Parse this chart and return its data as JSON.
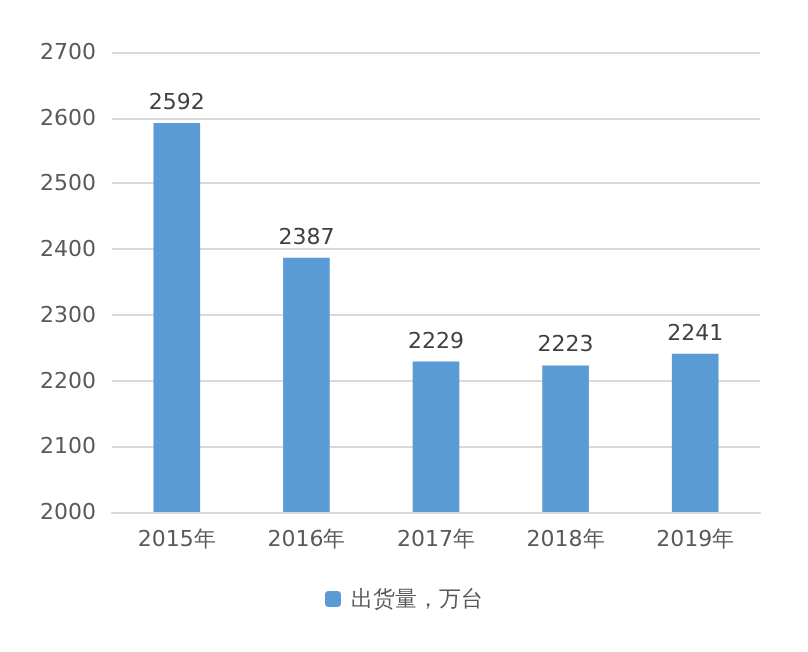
{
  "chart_data": {
    "type": "bar",
    "categories": [
      "2015年",
      "2016年",
      "2017年",
      "2018年",
      "2019年"
    ],
    "series": [
      {
        "name": "出货量，万台",
        "color": "#5b9bd5",
        "values": [
          2592,
          2387,
          2229,
          2223,
          2241
        ]
      }
    ],
    "ylim": [
      2000,
      2700
    ],
    "yticks": [
      2000,
      2100,
      2200,
      2300,
      2400,
      2500,
      2600,
      2700
    ],
    "grid": "y",
    "legend": "bottom",
    "data_labels": true
  }
}
